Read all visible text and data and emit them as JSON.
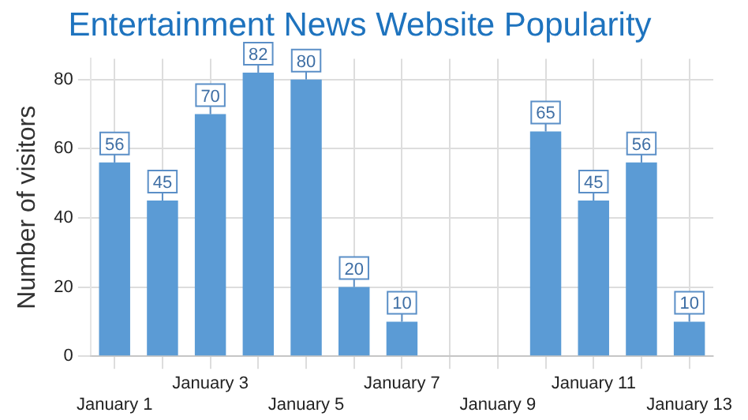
{
  "chart_data": {
    "type": "bar",
    "title": "Entertainment News Website Popularity",
    "ylabel": "Number of visitors",
    "categories": [
      "January 1",
      null,
      "January 3",
      null,
      "January 5",
      null,
      "January 7",
      null,
      "January 9",
      null,
      "January 11",
      null,
      "January 13"
    ],
    "values": [
      56,
      45,
      70,
      82,
      80,
      20,
      10,
      null,
      null,
      65,
      45,
      56,
      10
    ],
    "color": "#5b9bd5",
    "ylim": [
      0,
      86
    ],
    "yticks": [
      0,
      20,
      40,
      60,
      80
    ],
    "grid": true,
    "data_labels": true,
    "legend": false
  }
}
